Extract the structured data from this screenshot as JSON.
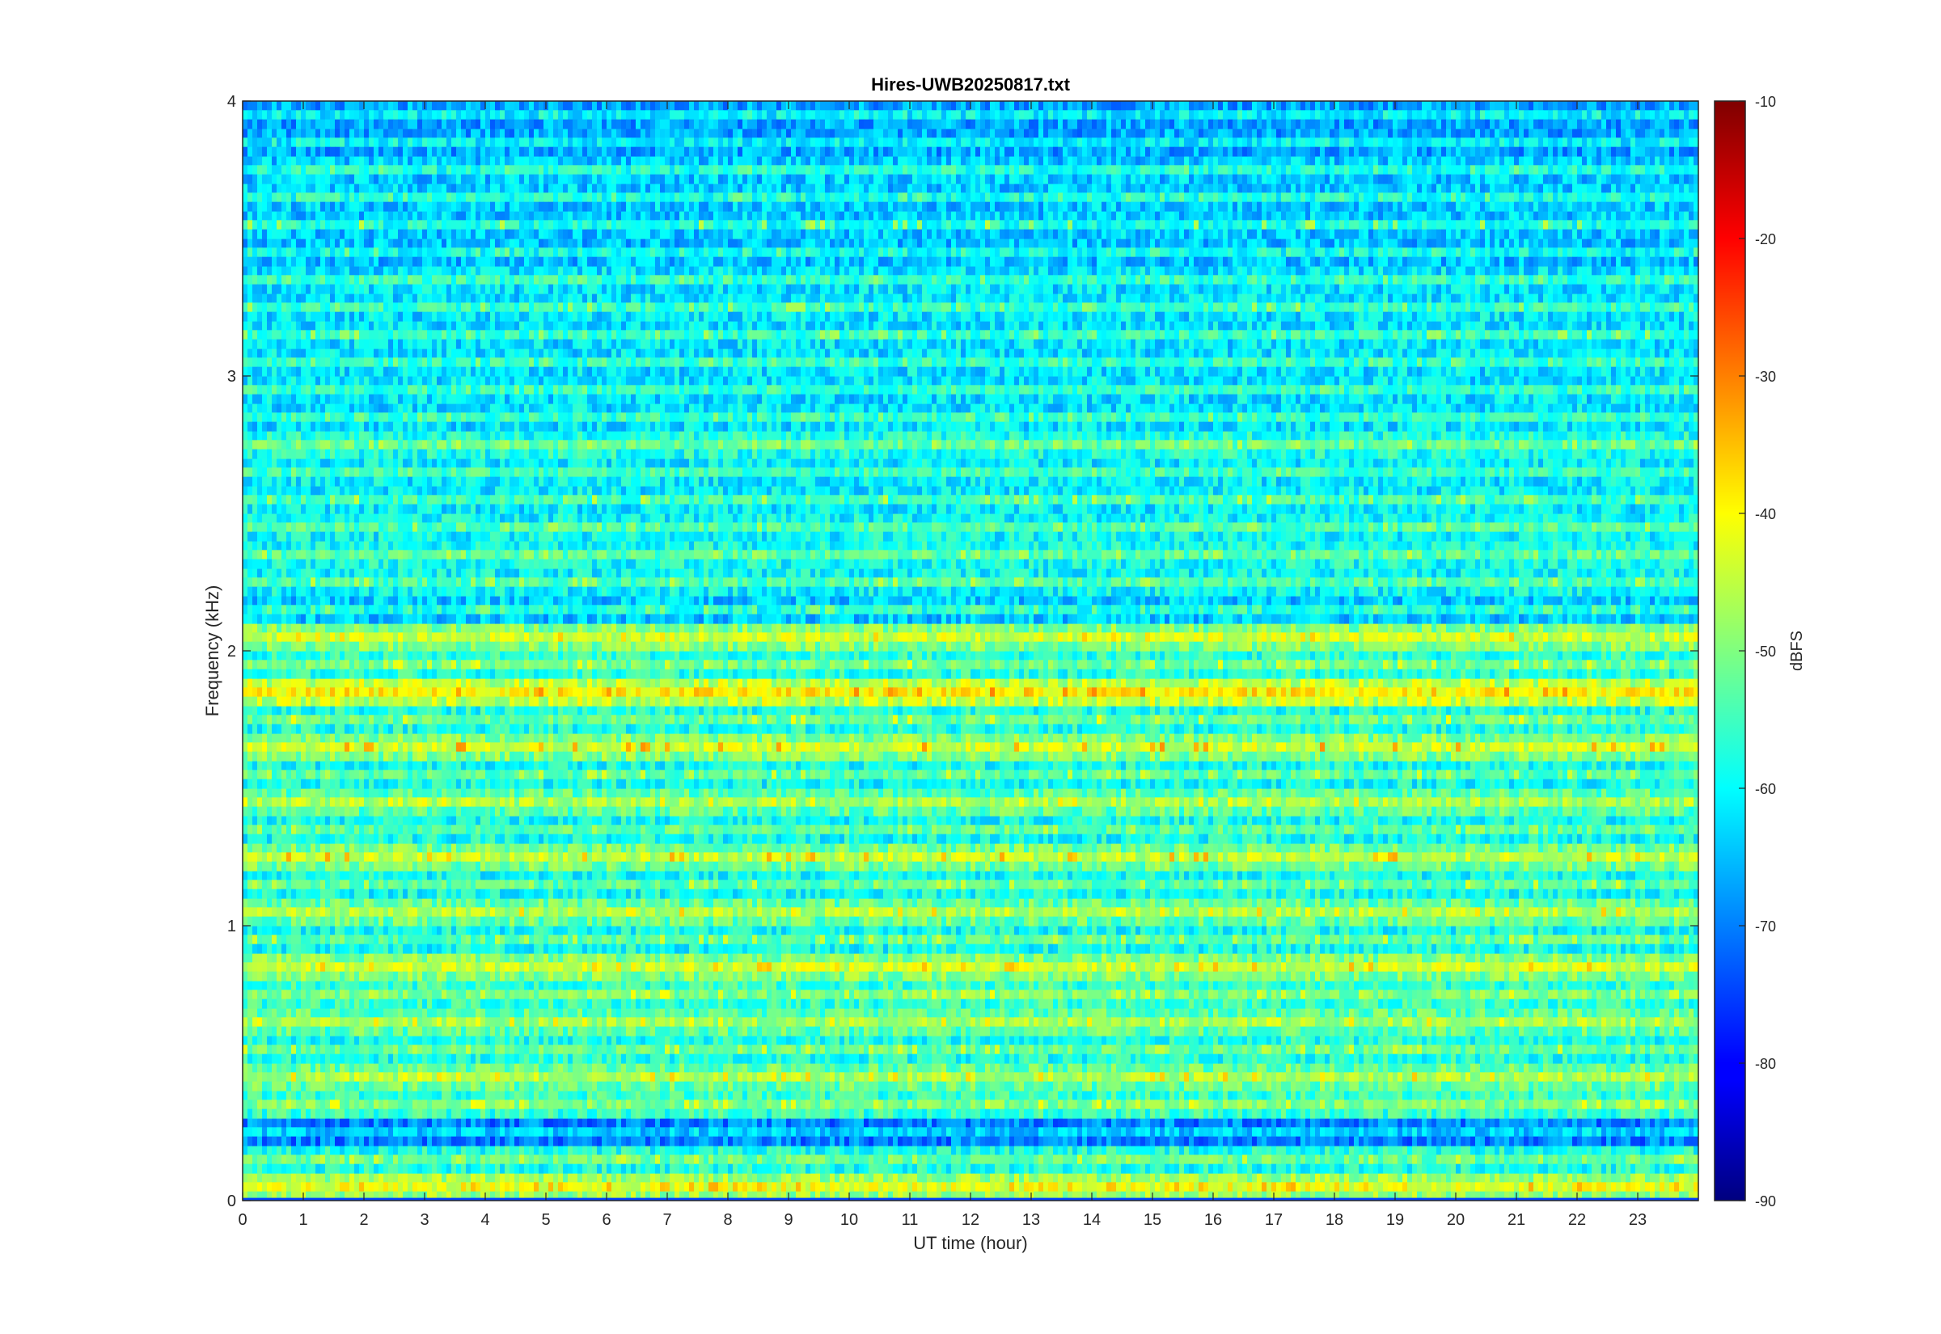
{
  "chart_data": {
    "type": "heatmap",
    "title": "Hires-UWB20250817.txt",
    "xlabel": "UT time (hour)",
    "ylabel": "Frequency (kHz)",
    "xlim": [
      0,
      24
    ],
    "ylim": [
      0,
      4
    ],
    "x_ticks": [
      "0",
      "1",
      "2",
      "3",
      "4",
      "5",
      "6",
      "7",
      "8",
      "9",
      "10",
      "11",
      "12",
      "13",
      "14",
      "15",
      "16",
      "17",
      "18",
      "19",
      "20",
      "21",
      "22",
      "23"
    ],
    "y_ticks": [
      "0",
      "1",
      "2",
      "3",
      "4"
    ],
    "colorbar": {
      "label": "dBFS",
      "range": [
        -90,
        -10
      ],
      "ticks": [
        "-10",
        "-20",
        "-30",
        "-40",
        "-50",
        "-60",
        "-70",
        "-80",
        "-90"
      ],
      "colormap": "jet"
    },
    "band_spacing_khz": 0.1,
    "band_levels_dbfs": [
      -42,
      -52,
      -64,
      -50,
      -46,
      -52,
      -47,
      -50,
      -44,
      -53,
      -46,
      -53,
      -45,
      -53,
      -47,
      -53,
      -44,
      -52,
      -39,
      -51,
      -44,
      -58,
      -54,
      -53,
      -54,
      -55,
      -55,
      -52,
      -56,
      -56,
      -56,
      -56,
      -56,
      -56,
      -59,
      -58,
      -58,
      -58,
      -61,
      -61
    ],
    "band_peak_dbfs": [
      -35,
      -45,
      -60,
      -42,
      -38,
      -44,
      -40,
      -42,
      -36,
      -45,
      -38,
      -44,
      -35,
      -46,
      -40,
      -44,
      -33,
      -42,
      -32,
      -42,
      -38,
      -50,
      -46,
      -46,
      -48,
      -46,
      -50,
      -46,
      -50,
      -50,
      -50,
      -48,
      -48,
      -50,
      -52,
      -46,
      -52,
      -52,
      -56,
      -56
    ]
  }
}
